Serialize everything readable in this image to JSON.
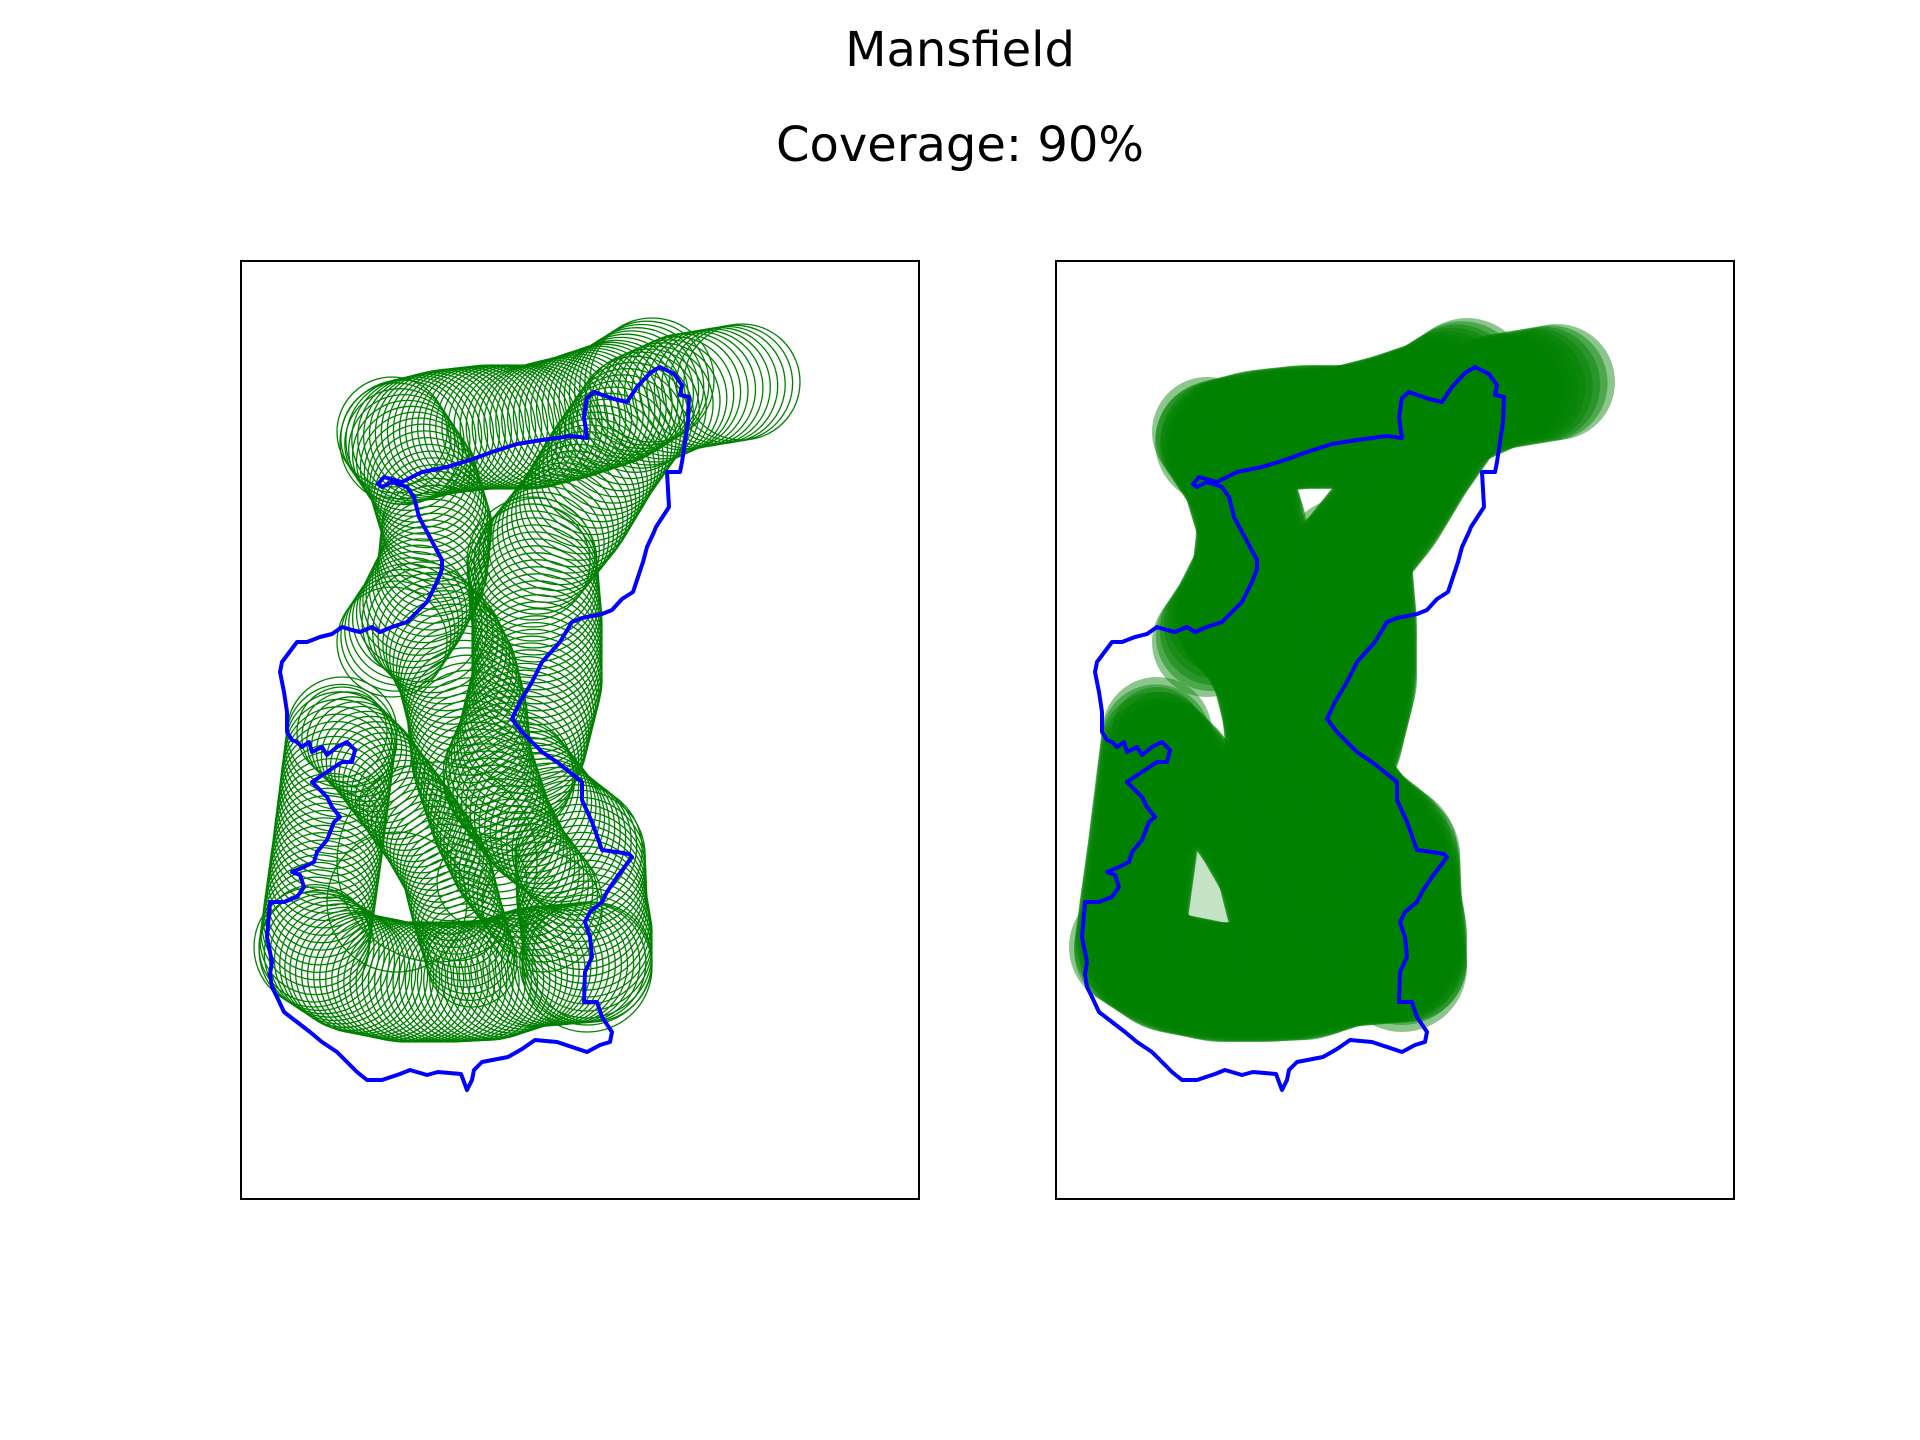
{
  "figure": {
    "title": "Mansfield",
    "subtitle": "Coverage: 90%"
  },
  "colors": {
    "boundary": "#0000ff",
    "coverage": "#008000",
    "frame": "#000000",
    "background": "#ffffff"
  },
  "panels": [
    {
      "view": "circle-outlines",
      "boundary_color": "#0000ff",
      "circle_color": "#008000"
    },
    {
      "view": "filled-circles",
      "boundary_color": "#0000ff",
      "circle_color": "#008000"
    }
  ]
}
